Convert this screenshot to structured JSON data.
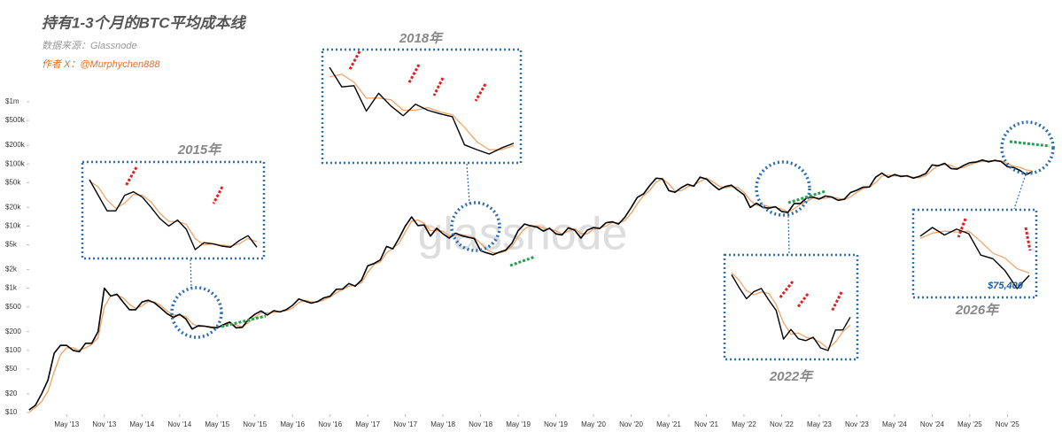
{
  "chart_data": {
    "type": "line",
    "title": "持有1-3个月的BTC平均成本线",
    "subtitle": "数据来源：Glassnode",
    "author": "作者 X：@Murphychen888",
    "watermark": "glassnode",
    "annotations": [
      "2015年",
      "2018年",
      "2022年",
      "2026年",
      "$75,400"
    ],
    "log_scale": true,
    "grid": false,
    "ylim": [
      10,
      1000000
    ],
    "yticks": [
      {
        "value": 10,
        "label": "$10"
      },
      {
        "value": 20,
        "label": "$20"
      },
      {
        "value": 50,
        "label": "$50"
      },
      {
        "value": 100,
        "label": "$100"
      },
      {
        "value": 200,
        "label": "$200"
      },
      {
        "value": 500,
        "label": "$500"
      },
      {
        "value": 1000,
        "label": "$1k"
      },
      {
        "value": 2000,
        "label": "$2k"
      },
      {
        "value": 5000,
        "label": "$5k"
      },
      {
        "value": 10000,
        "label": "$10k"
      },
      {
        "value": 20000,
        "label": "$20k"
      },
      {
        "value": 50000,
        "label": "$50k"
      },
      {
        "value": 100000,
        "label": "$100k"
      },
      {
        "value": 200000,
        "label": "$200k"
      },
      {
        "value": 500000,
        "label": "$500k"
      },
      {
        "value": 1000000,
        "label": "$1m"
      }
    ],
    "xticks": [
      {
        "value": "2013-05",
        "label": "May '13"
      },
      {
        "value": "2013-11",
        "label": "Nov '13"
      },
      {
        "value": "2014-05",
        "label": "May '14"
      },
      {
        "value": "2014-11",
        "label": "Nov '14"
      },
      {
        "value": "2015-05",
        "label": "May '15"
      },
      {
        "value": "2015-11",
        "label": "Nov '15"
      },
      {
        "value": "2016-05",
        "label": "May '16"
      },
      {
        "value": "2016-11",
        "label": "Nov '16"
      },
      {
        "value": "2017-05",
        "label": "May '17"
      },
      {
        "value": "2017-11",
        "label": "Nov '17"
      },
      {
        "value": "2018-05",
        "label": "May '18"
      },
      {
        "value": "2018-11",
        "label": "Nov '18"
      },
      {
        "value": "2019-05",
        "label": "May '19"
      },
      {
        "value": "2019-11",
        "label": "Nov '19"
      },
      {
        "value": "2020-05",
        "label": "May '20"
      },
      {
        "value": "2020-11",
        "label": "Nov '20"
      },
      {
        "value": "2021-05",
        "label": "May '21"
      },
      {
        "value": "2021-11",
        "label": "Nov '21"
      },
      {
        "value": "2022-05",
        "label": "May '22"
      },
      {
        "value": "2022-11",
        "label": "Nov '22"
      },
      {
        "value": "2023-05",
        "label": "May '23"
      },
      {
        "value": "2023-11",
        "label": "Nov '23"
      },
      {
        "value": "2024-05",
        "label": "May '24"
      },
      {
        "value": "2024-11",
        "label": "Nov '24"
      },
      {
        "value": "2025-05",
        "label": "May '25"
      },
      {
        "value": "2025-11",
        "label": "Nov '25"
      }
    ],
    "x": [
      "2012-11",
      "2012-12",
      "2013-01",
      "2013-02",
      "2013-03",
      "2013-04",
      "2013-05",
      "2013-06",
      "2013-07",
      "2013-08",
      "2013-09",
      "2013-10",
      "2013-11",
      "2013-12",
      "2014-01",
      "2014-02",
      "2014-03",
      "2014-04",
      "2014-05",
      "2014-06",
      "2014-07",
      "2014-08",
      "2014-09",
      "2014-10",
      "2014-11",
      "2014-12",
      "2015-01",
      "2015-02",
      "2015-03",
      "2015-04",
      "2015-05",
      "2015-06",
      "2015-07",
      "2015-08",
      "2015-09",
      "2015-10",
      "2015-11",
      "2015-12",
      "2016-01",
      "2016-02",
      "2016-03",
      "2016-04",
      "2016-05",
      "2016-06",
      "2016-07",
      "2016-08",
      "2016-09",
      "2016-10",
      "2016-11",
      "2016-12",
      "2017-01",
      "2017-02",
      "2017-03",
      "2017-04",
      "2017-05",
      "2017-06",
      "2017-07",
      "2017-08",
      "2017-09",
      "2017-10",
      "2017-11",
      "2017-12",
      "2018-01",
      "2018-02",
      "2018-03",
      "2018-04",
      "2018-05",
      "2018-06",
      "2018-07",
      "2018-08",
      "2018-09",
      "2018-10",
      "2018-11",
      "2018-12",
      "2019-01",
      "2019-02",
      "2019-03",
      "2019-04",
      "2019-05",
      "2019-06",
      "2019-07",
      "2019-08",
      "2019-09",
      "2019-10",
      "2019-11",
      "2019-12",
      "2020-01",
      "2020-02",
      "2020-03",
      "2020-04",
      "2020-05",
      "2020-06",
      "2020-07",
      "2020-08",
      "2020-09",
      "2020-10",
      "2020-11",
      "2020-12",
      "2021-01",
      "2021-02",
      "2021-03",
      "2021-04",
      "2021-05",
      "2021-06",
      "2021-07",
      "2021-08",
      "2021-09",
      "2021-10",
      "2021-11",
      "2021-12",
      "2022-01",
      "2022-02",
      "2022-03",
      "2022-04",
      "2022-05",
      "2022-06",
      "2022-07",
      "2022-08",
      "2022-09",
      "2022-10",
      "2022-11",
      "2022-12",
      "2023-01",
      "2023-02",
      "2023-03",
      "2023-04",
      "2023-05",
      "2023-06",
      "2023-07",
      "2023-08",
      "2023-09",
      "2023-10",
      "2023-11",
      "2023-12",
      "2024-01",
      "2024-02",
      "2024-03",
      "2024-04",
      "2024-05",
      "2024-06",
      "2024-07",
      "2024-08",
      "2024-09",
      "2024-10",
      "2024-11",
      "2024-12",
      "2025-01",
      "2025-02",
      "2025-03",
      "2025-04",
      "2025-05",
      "2025-06",
      "2025-07",
      "2025-08",
      "2025-09",
      "2025-10",
      "2025-11",
      "2025-12",
      "2026-01",
      "2026-02",
      "2026-03"
    ],
    "series": [
      {
        "color": "#000000",
        "values": [
          11,
          13,
          20,
          33,
          90,
          120,
          120,
          100,
          95,
          130,
          130,
          200,
          1000,
          750,
          800,
          600,
          450,
          450,
          600,
          640,
          580,
          480,
          390,
          340,
          380,
          320,
          220,
          250,
          245,
          235,
          230,
          260,
          285,
          230,
          235,
          315,
          380,
          430,
          370,
          435,
          415,
          450,
          530,
          670,
          620,
          575,
          610,
          700,
          745,
          960,
          970,
          1190,
          1080,
          1350,
          2300,
          2500,
          2850,
          4700,
          4300,
          6400,
          10000,
          14000,
          10200,
          10400,
          6900,
          9200,
          7500,
          6400,
          7700,
          7000,
          6600,
          6300,
          4000,
          3700,
          3450,
          3800,
          4100,
          5300,
          8500,
          10800,
          10100,
          9600,
          8300,
          9200,
          7500,
          7200,
          9350,
          8600,
          6400,
          8600,
          9450,
          9150,
          11300,
          11700,
          10800,
          13800,
          19700,
          29000,
          33100,
          45200,
          58900,
          57700,
          37300,
          35000,
          41500,
          47100,
          43800,
          61300,
          57000,
          46300,
          38500,
          43200,
          45500,
          37700,
          31800,
          19900,
          23300,
          20000,
          19400,
          20500,
          17200,
          16500,
          23100,
          23100,
          28500,
          29300,
          27200,
          30500,
          29200,
          26000,
          27000,
          34700,
          37700,
          42300,
          42600,
          61200,
          71300,
          60700,
          67500,
          62700,
          64600,
          58900,
          63300,
          70200,
          96400,
          93400,
          102400,
          84400,
          82500,
          94200,
          104600,
          107100,
          115700,
          108200,
          114000,
          109500,
          90400,
          87500,
          78600,
          67000,
          75400
        ]
      },
      {
        "color": "#f0a060",
        "values": [
          10,
          12,
          15,
          22,
          45,
          85,
          110,
          110,
          100,
          110,
          125,
          160,
          500,
          750,
          780,
          700,
          550,
          470,
          520,
          610,
          600,
          530,
          430,
          370,
          370,
          350,
          270,
          240,
          245,
          240,
          235,
          245,
          270,
          255,
          240,
          280,
          340,
          400,
          400,
          410,
          420,
          435,
          480,
          590,
          640,
          600,
          600,
          650,
          720,
          850,
          950,
          1080,
          1120,
          1220,
          1800,
          2400,
          2650,
          3700,
          4400,
          5300,
          8000,
          12000,
          12500,
          11000,
          8500,
          8500,
          8300,
          7000,
          7000,
          7300,
          6800,
          6500,
          5300,
          4200,
          3700,
          3700,
          3950,
          4700,
          6800,
          9000,
          10300,
          10000,
          9300,
          8900,
          8400,
          7500,
          8300,
          9100,
          7600,
          7500,
          8900,
          9300,
          10000,
          11400,
          11200,
          12200,
          16000,
          23000,
          31000,
          38000,
          51000,
          57000,
          48000,
          36500,
          37000,
          43000,
          45500,
          52000,
          59000,
          52000,
          44000,
          41000,
          43000,
          42000,
          35000,
          26000,
          21500,
          22000,
          20500,
          20000,
          18800,
          17000,
          19000,
          22500,
          25000,
          28500,
          28000,
          28000,
          29500,
          28000,
          26500,
          29500,
          35000,
          40000,
          42500,
          50000,
          64000,
          66000,
          64000,
          65500,
          62500,
          61000,
          60000,
          65000,
          80000,
          95000,
          98000,
          95000,
          86000,
          87000,
          97000,
          105000,
          110000,
          112000,
          111000,
          112000,
          102000,
          92000,
          88000,
          80000,
          77000
        ]
      }
    ]
  }
}
